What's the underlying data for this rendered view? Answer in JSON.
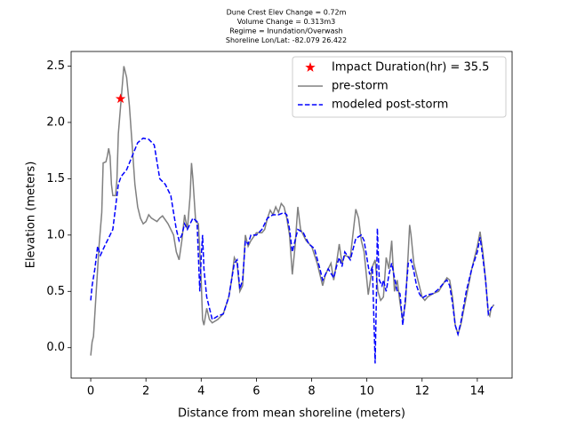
{
  "chart_data": {
    "type": "line",
    "title": [
      "Dune Crest Elev Change = 0.72m",
      "Volume Change = 0.313m3",
      "Regime = Inundation/Overwash",
      "Shoreline Lon/Lat: -82.079 26.422"
    ],
    "xlabel": "Distance from mean shoreline (meters)",
    "ylabel": "Elevation (meters)",
    "xlim": [
      -0.71,
      15.26
    ],
    "ylim": [
      -0.27,
      2.63
    ],
    "xticks": [
      0,
      2,
      4,
      6,
      8,
      10,
      12,
      14
    ],
    "yticks": [
      {
        "value": 0,
        "label": "0.0"
      },
      0.5,
      {
        "value": 1,
        "label": "1.0"
      },
      1.5,
      {
        "value": 2,
        "label": "2.0"
      },
      2.5
    ],
    "legend": "upper right",
    "series": [
      {
        "name": "Impact Duration(hr) = 35.5",
        "type": "scatter",
        "marker": "star",
        "color": "#ff0000",
        "x": [
          1.08
        ],
        "values": [
          2.21
        ]
      },
      {
        "name": "pre-storm",
        "type": "line",
        "color": "#808080",
        "dash": false,
        "x": [
          0,
          0.05,
          0.1,
          0.2,
          0.3,
          0.4,
          0.45,
          0.55,
          0.6,
          0.65,
          0.7,
          0.75,
          0.8,
          0.9,
          0.95,
          1.0,
          1.1,
          1.2,
          1.3,
          1.4,
          1.5,
          1.6,
          1.7,
          1.8,
          1.9,
          2.0,
          2.1,
          2.2,
          2.4,
          2.5,
          2.6,
          2.8,
          3.0,
          3.1,
          3.2,
          3.3,
          3.4,
          3.5,
          3.6,
          3.65,
          3.7,
          3.8,
          3.9,
          4.0,
          4.05,
          4.1,
          4.2,
          4.3,
          4.4,
          4.6,
          4.8,
          5.0,
          5.1,
          5.2,
          5.3,
          5.4,
          5.5,
          5.6,
          5.7,
          5.8,
          6.0,
          6.2,
          6.3,
          6.4,
          6.5,
          6.6,
          6.7,
          6.8,
          6.9,
          7.0,
          7.1,
          7.2,
          7.3,
          7.4,
          7.5,
          7.6,
          7.8,
          8.0,
          8.2,
          8.4,
          8.5,
          8.7,
          8.8,
          8.9,
          9.0,
          9.1,
          9.2,
          9.4,
          9.6,
          9.7,
          9.8,
          9.9,
          10.0,
          10.05,
          10.2,
          10.3,
          10.4,
          10.5,
          10.6,
          10.7,
          10.8,
          10.9,
          11.0,
          11.1,
          11.2,
          11.3,
          11.4,
          11.5,
          11.55,
          11.6,
          11.7,
          11.8,
          11.9,
          12.0,
          12.1,
          12.2,
          12.4,
          12.6,
          12.8,
          12.9,
          13.0,
          13.1,
          13.2,
          13.3,
          13.4,
          13.6,
          13.8,
          14.0,
          14.1,
          14.2,
          14.3,
          14.4,
          14.45,
          14.5,
          14.6
        ],
        "values": [
          -0.07,
          0.05,
          0.1,
          0.5,
          0.9,
          1.2,
          1.64,
          1.65,
          1.7,
          1.77,
          1.7,
          1.45,
          1.35,
          1.35,
          1.5,
          1.9,
          2.2,
          2.5,
          2.4,
          2.15,
          1.8,
          1.45,
          1.25,
          1.15,
          1.1,
          1.12,
          1.18,
          1.15,
          1.12,
          1.15,
          1.17,
          1.1,
          1.0,
          0.85,
          0.78,
          0.95,
          1.18,
          1.05,
          1.35,
          1.64,
          1.5,
          1.12,
          1.1,
          0.6,
          0.25,
          0.2,
          0.35,
          0.25,
          0.22,
          0.25,
          0.3,
          0.45,
          0.6,
          0.8,
          0.75,
          0.5,
          0.55,
          1.0,
          0.9,
          0.95,
          1.02,
          1.02,
          1.05,
          1.15,
          1.22,
          1.18,
          1.25,
          1.2,
          1.28,
          1.25,
          1.15,
          1.0,
          0.65,
          0.9,
          1.25,
          1.05,
          0.95,
          0.9,
          0.75,
          0.55,
          0.65,
          0.75,
          0.6,
          0.75,
          0.92,
          0.75,
          0.82,
          0.8,
          1.23,
          1.15,
          0.95,
          0.85,
          0.6,
          0.47,
          0.72,
          0.78,
          0.5,
          0.42,
          0.45,
          0.8,
          0.7,
          0.95,
          0.5,
          0.6,
          0.4,
          0.25,
          0.4,
          0.85,
          1.09,
          1.0,
          0.75,
          0.65,
          0.55,
          0.45,
          0.42,
          0.45,
          0.48,
          0.5,
          0.58,
          0.62,
          0.6,
          0.45,
          0.2,
          0.12,
          0.2,
          0.45,
          0.7,
          0.9,
          1.03,
          0.85,
          0.6,
          0.3,
          0.28,
          0.35,
          0.38
        ]
      },
      {
        "name": "modeled post-storm",
        "type": "line",
        "color": "#0000ff",
        "dash": true,
        "x": [
          0,
          0.05,
          0.15,
          0.25,
          0.35,
          0.5,
          0.7,
          0.8,
          0.9,
          1.0,
          1.1,
          1.3,
          1.5,
          1.7,
          1.9,
          2.1,
          2.3,
          2.5,
          2.7,
          2.9,
          3.1,
          3.2,
          3.3,
          3.4,
          3.5,
          3.6,
          3.7,
          3.85,
          3.95,
          4.0,
          4.05,
          4.1,
          4.2,
          4.4,
          4.6,
          4.8,
          5.0,
          5.2,
          5.3,
          5.4,
          5.5,
          5.6,
          5.7,
          5.8,
          6.0,
          6.2,
          6.4,
          6.6,
          6.8,
          7.0,
          7.1,
          7.2,
          7.3,
          7.4,
          7.5,
          7.7,
          7.9,
          8.1,
          8.3,
          8.4,
          8.6,
          8.8,
          8.9,
          9.0,
          9.1,
          9.2,
          9.4,
          9.6,
          9.8,
          9.9,
          10.0,
          10.1,
          10.2,
          10.25,
          10.3,
          10.35,
          10.38,
          10.45,
          10.55,
          10.6,
          10.7,
          10.8,
          10.9,
          11.0,
          11.1,
          11.2,
          11.3,
          11.4,
          11.5,
          11.6,
          11.7,
          11.8,
          11.9,
          12.0,
          12.2,
          12.4,
          12.6,
          12.8,
          12.9,
          13.0,
          13.1,
          13.2,
          13.3,
          13.4,
          13.6,
          13.8,
          14.0,
          14.1,
          14.2,
          14.3,
          14.4,
          14.5,
          14.6
        ],
        "values": [
          0.42,
          0.55,
          0.7,
          0.9,
          0.82,
          0.9,
          1.0,
          1.05,
          1.25,
          1.45,
          1.52,
          1.58,
          1.7,
          1.82,
          1.86,
          1.85,
          1.8,
          1.5,
          1.45,
          1.35,
          1.05,
          0.95,
          1.0,
          1.1,
          1.05,
          1.1,
          1.15,
          1.12,
          0.5,
          0.8,
          1.0,
          0.7,
          0.45,
          0.25,
          0.28,
          0.3,
          0.45,
          0.75,
          0.78,
          0.52,
          0.6,
          0.95,
          0.92,
          1.0,
          1.0,
          1.05,
          1.15,
          1.18,
          1.18,
          1.2,
          1.18,
          1.05,
          0.85,
          0.95,
          1.05,
          1.02,
          0.92,
          0.88,
          0.7,
          0.6,
          0.7,
          0.62,
          0.72,
          0.8,
          0.72,
          0.85,
          0.78,
          0.97,
          1.0,
          0.95,
          0.8,
          0.65,
          0.72,
          0.3,
          -0.14,
          0.5,
          1.06,
          0.6,
          0.55,
          0.6,
          0.5,
          0.65,
          0.75,
          0.62,
          0.5,
          0.48,
          0.2,
          0.45,
          0.75,
          0.78,
          0.68,
          0.55,
          0.48,
          0.44,
          0.47,
          0.48,
          0.52,
          0.58,
          0.6,
          0.55,
          0.4,
          0.2,
          0.12,
          0.22,
          0.5,
          0.7,
          0.85,
          0.98,
          0.8,
          0.6,
          0.3,
          0.35,
          0.38
        ]
      }
    ]
  }
}
